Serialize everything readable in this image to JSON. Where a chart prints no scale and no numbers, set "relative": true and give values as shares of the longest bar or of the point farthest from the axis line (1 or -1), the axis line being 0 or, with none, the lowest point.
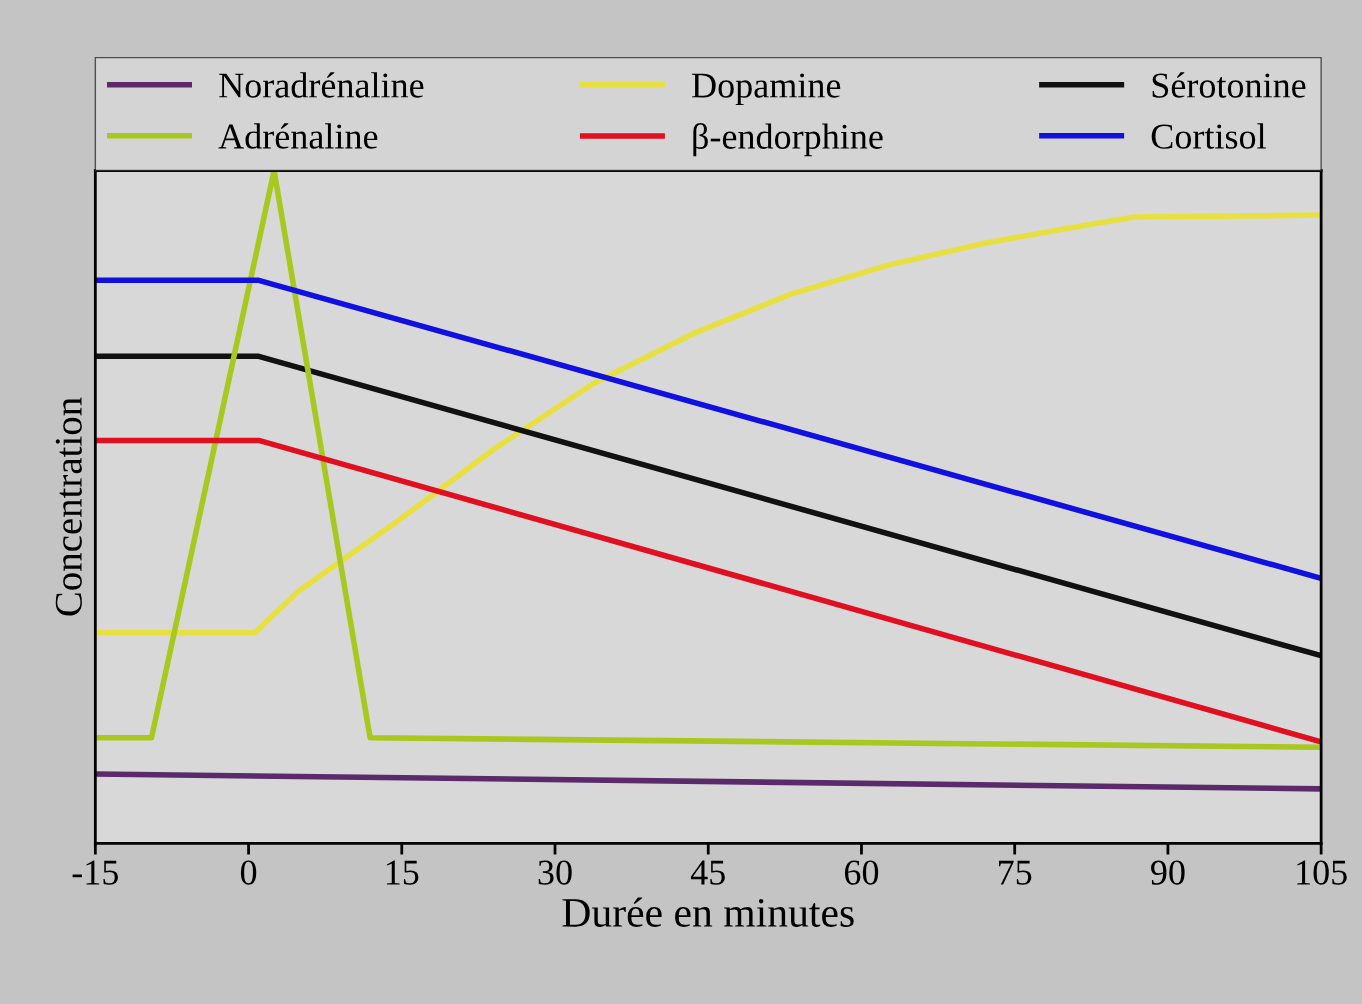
{
  "chart_data": {
    "type": "line",
    "relative": true,
    "xlabel": "Durée en minutes",
    "ylabel": "Concentration",
    "xlim": [
      -15,
      105
    ],
    "xticks": [
      -15,
      0,
      15,
      30,
      45,
      60,
      75,
      90,
      105
    ],
    "grid": false,
    "legend": "top",
    "marker": "none",
    "line_style": "solid",
    "series": [
      {
        "name": "Noradrénaline",
        "color": "#5a2a6a",
        "x": [
          -15,
          105
        ],
        "values": [
          0.103,
          0.081
        ]
      },
      {
        "name": "Dopamine",
        "color": "#e8e040",
        "x": [
          -15,
          0.6,
          4.9,
          14.5,
          24.2,
          33.8,
          43.4,
          53.0,
          62.7,
          72.3,
          81.9,
          86.7,
          105
        ],
        "values": [
          0.313,
          0.313,
          0.375,
          0.478,
          0.588,
          0.684,
          0.757,
          0.816,
          0.86,
          0.893,
          0.919,
          0.931,
          0.934
        ]
      },
      {
        "name": "Sérotonine",
        "color": "#111111",
        "x": [
          -15,
          1,
          105
        ],
        "values": [
          0.724,
          0.724,
          0.279
        ]
      },
      {
        "name": "Adrénaline",
        "color": "#a8c820",
        "x": [
          -15,
          -9.5,
          2.5,
          11.9,
          105
        ],
        "values": [
          0.157,
          0.157,
          1.0,
          0.157,
          0.143
        ]
      },
      {
        "name": "β-endorphine",
        "color": "#e01020",
        "x": [
          -15,
          1,
          105
        ],
        "values": [
          0.599,
          0.599,
          0.151
        ]
      },
      {
        "name": "Cortisol",
        "color": "#1010e0",
        "x": [
          -15,
          1,
          105
        ],
        "values": [
          0.837,
          0.837,
          0.394
        ]
      }
    ]
  }
}
